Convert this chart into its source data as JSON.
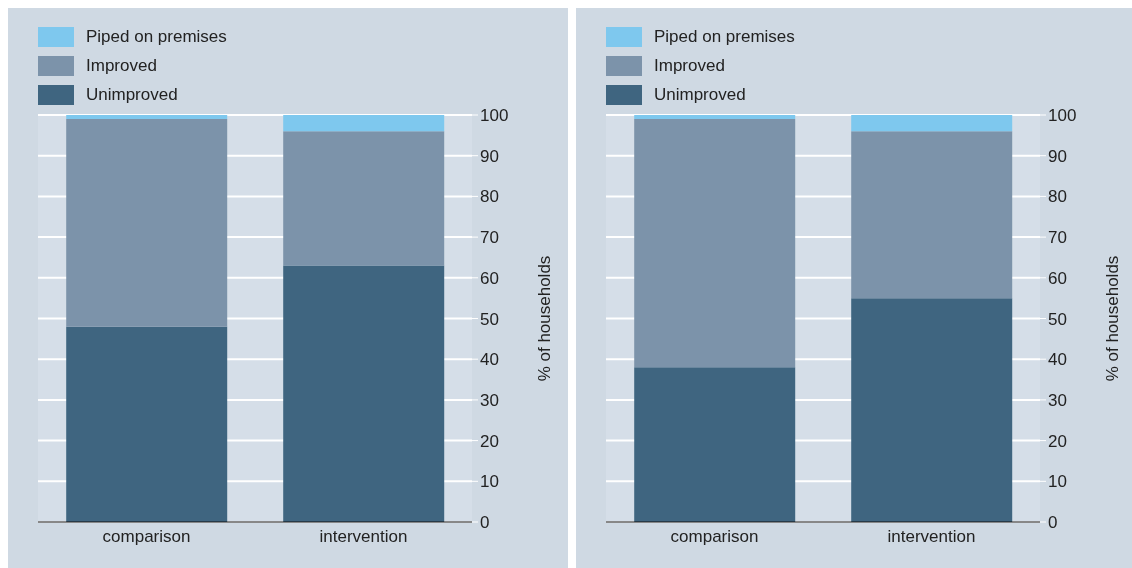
{
  "chart_data": [
    {
      "type": "bar",
      "stacked": true,
      "categories": [
        "comparison",
        "intervention"
      ],
      "ylabel": "% of households",
      "ylim": [
        0,
        100
      ],
      "yticks": [
        0,
        10,
        20,
        30,
        40,
        50,
        60,
        70,
        80,
        90,
        100
      ],
      "grid": "y",
      "legend": "top",
      "series": [
        {
          "name": "Unimproved",
          "color": "#3f6580",
          "values": [
            48,
            63
          ]
        },
        {
          "name": "Improved",
          "color": "#7c93aa",
          "values": [
            51,
            33
          ]
        },
        {
          "name": "Piped on premises",
          "color": "#7ec8ee",
          "values": [
            1,
            4
          ]
        }
      ]
    },
    {
      "type": "bar",
      "stacked": true,
      "categories": [
        "comparison",
        "intervention"
      ],
      "ylabel": "% of households",
      "ylim": [
        0,
        100
      ],
      "yticks": [
        0,
        10,
        20,
        30,
        40,
        50,
        60,
        70,
        80,
        90,
        100
      ],
      "grid": "y",
      "legend": "top",
      "series": [
        {
          "name": "Unimproved",
          "color": "#3f6580",
          "values": [
            38,
            55
          ]
        },
        {
          "name": "Improved",
          "color": "#7c93aa",
          "values": [
            61,
            41
          ]
        },
        {
          "name": "Piped on premises",
          "color": "#7ec8ee",
          "values": [
            1,
            4
          ]
        }
      ]
    }
  ]
}
